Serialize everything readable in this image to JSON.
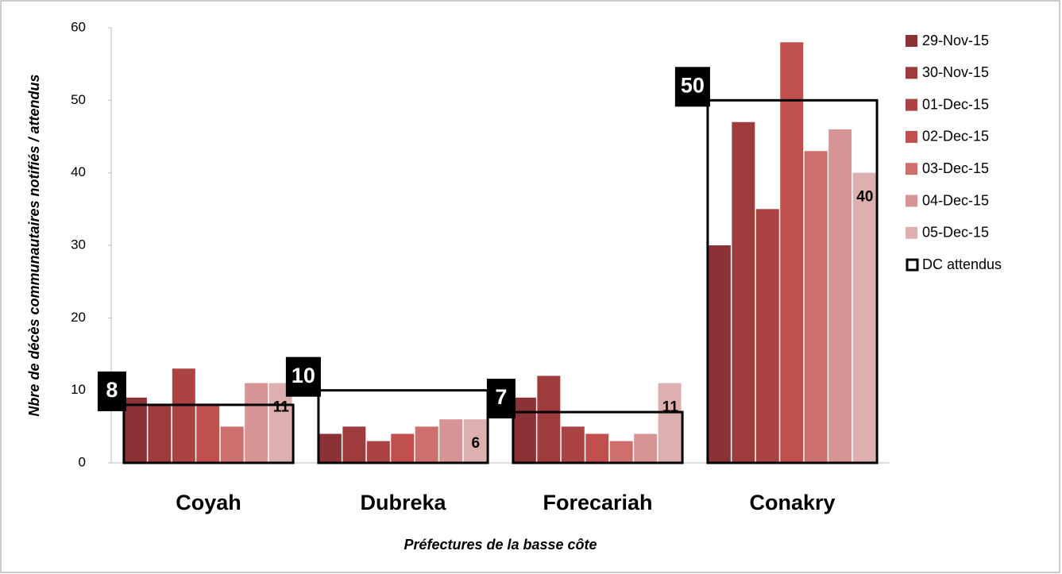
{
  "chart_data": {
    "type": "bar",
    "x_label": "Préfectures de la basse côte",
    "y_label": "Nbre de décès communautaires notifiés / attendus",
    "categories": [
      "Coyah",
      "Dubreka",
      "Forecariah",
      "Conakry"
    ],
    "series": [
      {
        "name": "29-Nov-15",
        "color": "#8b3236",
        "values": [
          9,
          4,
          9,
          30
        ]
      },
      {
        "name": "30-Nov-15",
        "color": "#9e3b3c",
        "values": [
          8,
          5,
          12,
          47
        ]
      },
      {
        "name": "01-Dec-15",
        "color": "#ac4343",
        "values": [
          13,
          3,
          5,
          35
        ]
      },
      {
        "name": "02-Dec-15",
        "color": "#c0504d",
        "values": [
          8,
          4,
          4,
          58
        ]
      },
      {
        "name": "03-Dec-15",
        "color": "#cd6f6c",
        "values": [
          5,
          5,
          3,
          43
        ]
      },
      {
        "name": "04-Dec-15",
        "color": "#d69594",
        "values": [
          11,
          6,
          4,
          46
        ]
      },
      {
        "name": "05-Dec-15",
        "color": "#ddafaf",
        "values": [
          11,
          6,
          11,
          40
        ],
        "labels": true
      },
      {
        "name": "DC attendus",
        "color": "#000000",
        "style": "outline",
        "values": [
          8,
          10,
          7,
          50
        ],
        "labels": true
      }
    ],
    "ylim": [
      0,
      60
    ],
    "yticks": [
      0,
      10,
      20,
      30,
      40,
      50,
      60
    ],
    "grid": false
  }
}
